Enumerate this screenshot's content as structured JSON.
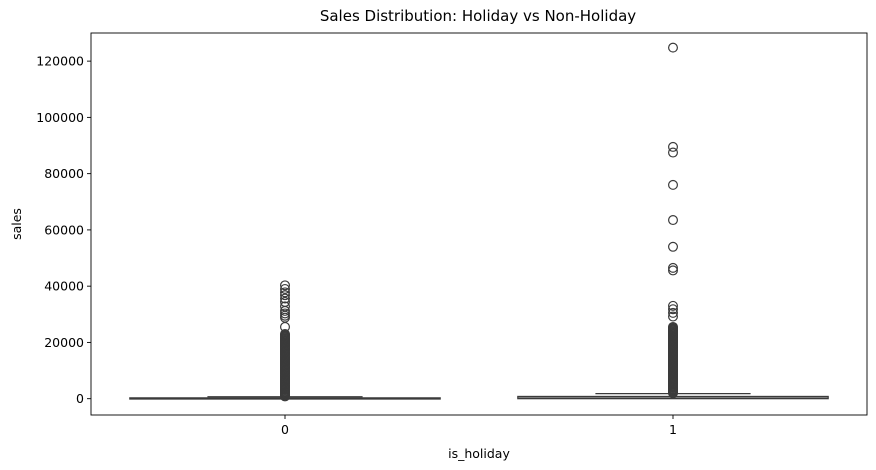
{
  "chart_data": {
    "type": "box",
    "title": "Sales Distribution: Holiday vs Non-Holiday",
    "xlabel": "is_holiday",
    "ylabel": "sales",
    "categories": [
      "0",
      "1"
    ],
    "ylim": [
      -5800,
      130000
    ],
    "yticks": [
      0,
      20000,
      40000,
      60000,
      80000,
      100000,
      120000
    ],
    "grid": false,
    "box_color": "#3b3b3b",
    "boxes": [
      {
        "category": "0",
        "whisker_low": 0,
        "q1": 0,
        "median": 0,
        "q3": 300,
        "whisker_high": 700,
        "outliers_dense_range": [
          800,
          23000
        ],
        "outliers_sparse": [
          25500,
          28800,
          29500,
          30300,
          31200,
          32800,
          34400,
          35600,
          36800,
          37800,
          39000,
          40300
        ]
      },
      {
        "category": "1",
        "whisker_low": 0,
        "q1": 0,
        "median": 200,
        "q3": 800,
        "whisker_high": 1800,
        "outliers_dense_range": [
          2000,
          25500
        ],
        "outliers_sparse": [
          29200,
          30500,
          31800,
          33000,
          45600,
          46500,
          54000,
          63500,
          76000,
          87500,
          89500,
          124800
        ]
      }
    ]
  }
}
